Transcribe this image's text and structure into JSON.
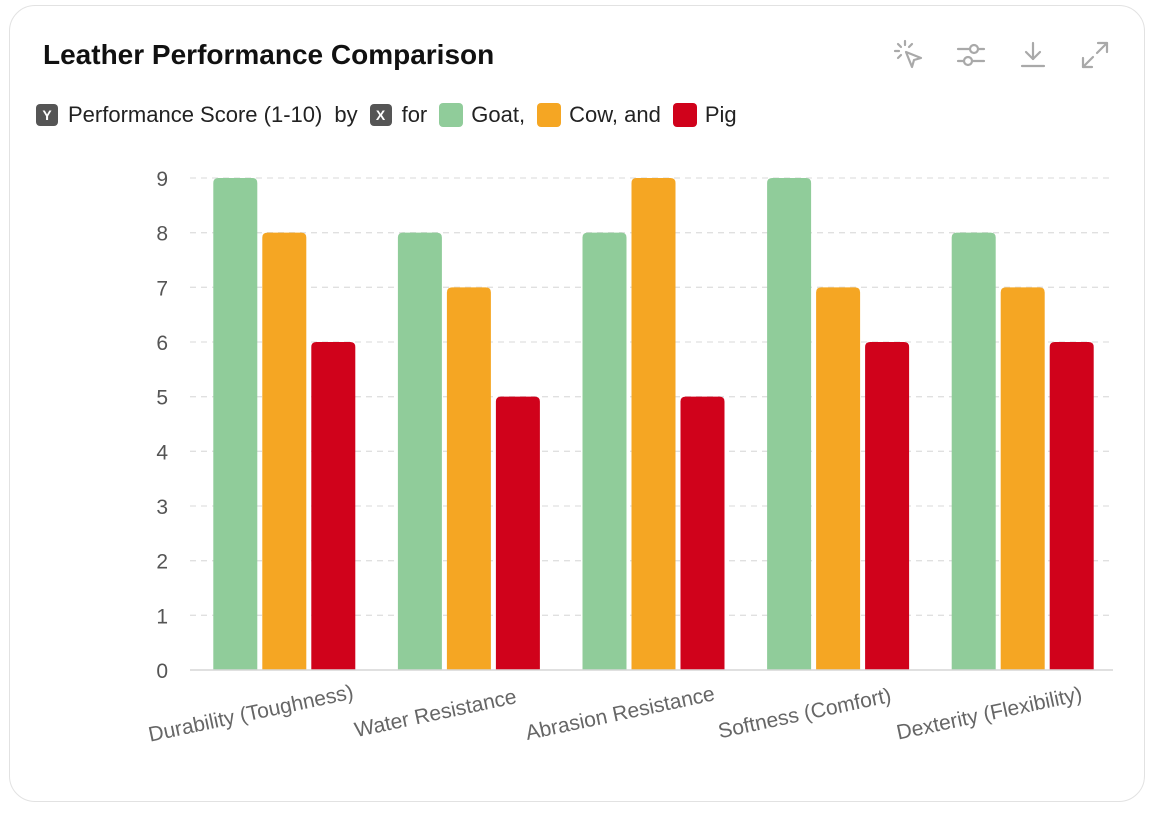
{
  "card": {
    "title": "Leather Performance Comparison"
  },
  "toolbar": {
    "icons": [
      "select-pointer-icon",
      "sliders-icon",
      "download-icon",
      "expand-icon"
    ]
  },
  "legend": {
    "y_chip": "Y",
    "y_label": "Performance Score (1-10)",
    "by_word": "by",
    "x_chip": "X",
    "for_word": "for",
    "items": [
      {
        "label": "Goat,",
        "color": "#90cc9a"
      },
      {
        "label": "Cow, and",
        "color": "#f5a623"
      },
      {
        "label": "Pig",
        "color": "#d0021b"
      }
    ]
  },
  "chart_data": {
    "type": "bar",
    "categories": [
      "Durability (Toughness)",
      "Water Resistance",
      "Abrasion Resistance",
      "Softness (Comfort)",
      "Dexterity (Flexibility)"
    ],
    "series": [
      {
        "name": "Goat",
        "color": "#90cc9a",
        "values": [
          9,
          8,
          8,
          9,
          8
        ]
      },
      {
        "name": "Cow",
        "color": "#f5a623",
        "values": [
          8,
          7,
          9,
          7,
          7
        ]
      },
      {
        "name": "Pig",
        "color": "#d0021b",
        "values": [
          6,
          5,
          5,
          6,
          6
        ]
      }
    ],
    "ylim": [
      0,
      9
    ],
    "yticks": [
      "0",
      "1",
      "2",
      "3",
      "4",
      "5",
      "6",
      "7",
      "8",
      "9"
    ],
    "grid": true,
    "legend_position": "top-left"
  }
}
